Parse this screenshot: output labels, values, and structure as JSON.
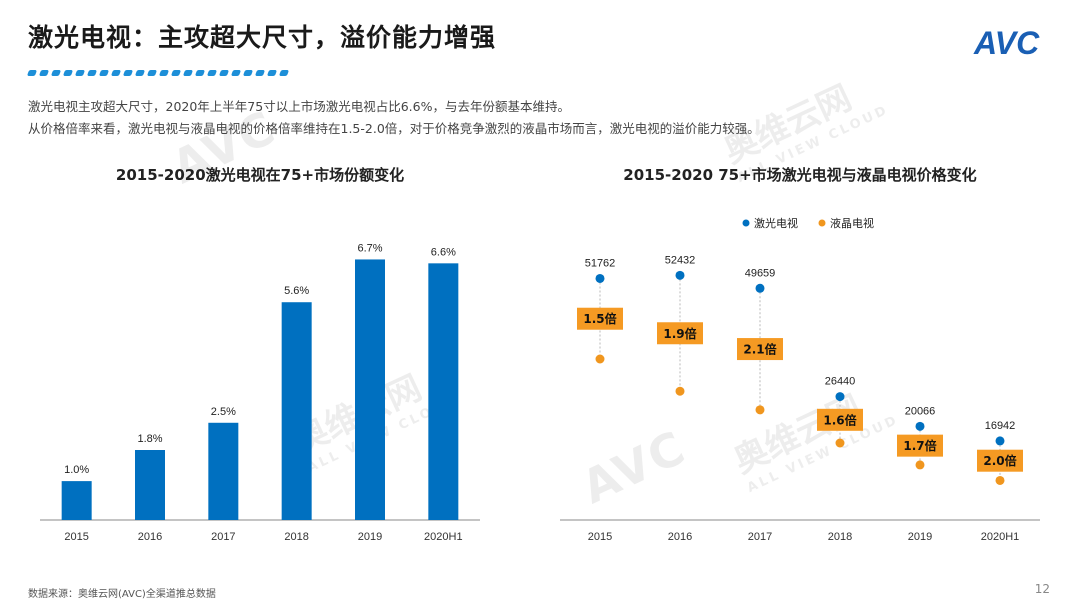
{
  "header": {
    "title": "激光电视：主攻超大尺寸，溢价能力增强"
  },
  "brand": {
    "accent_color": "#1a5fb4",
    "logo_text": "AVC"
  },
  "description": {
    "line1": "激光电视主攻超大尺寸，2020年上半年75寸以上市场激光电视占比6.6%，与去年份额基本维持。",
    "line2": "从价格倍率来看，激光电视与液晶电视的价格倍率维持在1.5-2.0倍，对于价格竞争激烈的液晶市场而言，激光电视的溢价能力较强。"
  },
  "watermark": {
    "logo": "AVC",
    "cn": "奥维云网",
    "en": "ALL VIEW CLOUD"
  },
  "chart_data": [
    {
      "type": "bar",
      "title": "2015-2020激光电视在75+市场份额变化",
      "categories": [
        "2015",
        "2016",
        "2017",
        "2018",
        "2019",
        "2020H1"
      ],
      "values": [
        1.0,
        1.8,
        2.5,
        5.6,
        6.7,
        6.6
      ],
      "labels": [
        "1.0%",
        "1.8%",
        "2.5%",
        "5.6%",
        "6.7%",
        "6.6%"
      ],
      "ylim": [
        0,
        7.2
      ],
      "grid": false,
      "color": "#0070c0"
    },
    {
      "type": "scatter",
      "title": "2015-2020 75+市场激光电视与液晶电视价格变化",
      "categories": [
        "2015",
        "2016",
        "2017",
        "2018",
        "2019",
        "2020H1"
      ],
      "series": [
        {
          "name": "激光电视",
          "color": "#0070c0",
          "values": [
            51762,
            52432,
            49659,
            26440,
            20066,
            16942
          ]
        },
        {
          "name": "液晶电视",
          "color": "#f0961e",
          "values": [
            34500,
            27600,
            23600,
            16500,
            11800,
            8470
          ]
        }
      ],
      "ratios": [
        "1.5倍",
        "1.9倍",
        "2.1倍",
        "1.6倍",
        "1.7倍",
        "2.0倍"
      ],
      "legend": "top-center",
      "ylim": [
        0,
        60000
      ]
    }
  ],
  "footer": {
    "source": "数据来源：奥维云网(AVC)全渠道推总数据",
    "page": "12"
  }
}
